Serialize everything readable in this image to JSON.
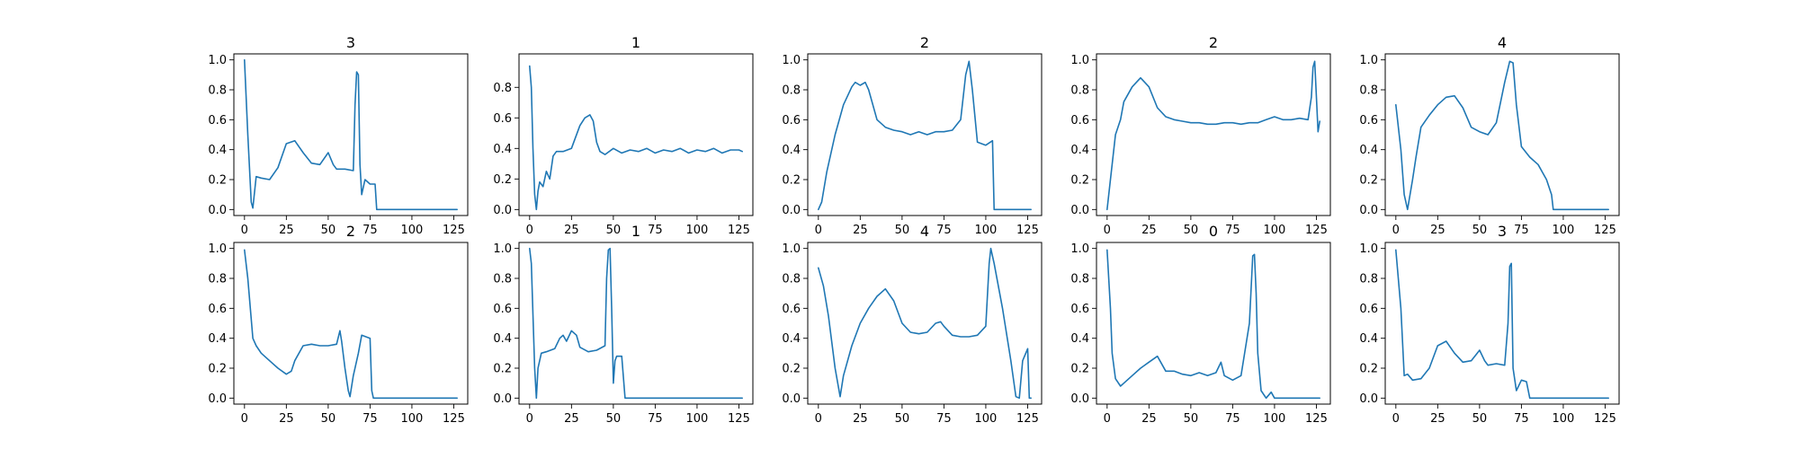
{
  "chart_data": [
    {
      "type": "line",
      "title": "3",
      "xlim": [
        0,
        127
      ],
      "ylim": [
        0,
        1
      ],
      "xticks": [
        0,
        25,
        50,
        75,
        100,
        125
      ],
      "yticks": [
        0.0,
        0.2,
        0.4,
        0.6,
        0.8,
        1.0
      ],
      "grid": false,
      "line_color": "#1f77b4",
      "x": [
        0,
        2,
        4,
        5,
        7,
        10,
        15,
        20,
        25,
        30,
        35,
        40,
        45,
        50,
        53,
        55,
        60,
        65,
        66,
        67,
        68,
        69,
        70,
        72,
        75,
        78,
        79,
        80,
        90,
        100,
        110,
        127
      ],
      "y": [
        1.0,
        0.5,
        0.05,
        0.01,
        0.22,
        0.21,
        0.2,
        0.28,
        0.44,
        0.46,
        0.38,
        0.31,
        0.3,
        0.38,
        0.3,
        0.27,
        0.27,
        0.26,
        0.7,
        0.92,
        0.9,
        0.3,
        0.1,
        0.2,
        0.17,
        0.17,
        0.0,
        0.0,
        0.0,
        0.0,
        0.0,
        0.0
      ]
    },
    {
      "type": "line",
      "title": "1",
      "xlim": [
        0,
        127
      ],
      "ylim": [
        0,
        0.98
      ],
      "xticks": [
        0,
        25,
        50,
        75,
        100,
        125
      ],
      "yticks": [
        0.0,
        0.2,
        0.4,
        0.6,
        0.8
      ],
      "grid": false,
      "line_color": "#1f77b4",
      "x": [
        0,
        1,
        2,
        3,
        4,
        5,
        6,
        8,
        10,
        12,
        14,
        16,
        20,
        25,
        30,
        33,
        36,
        38,
        40,
        42,
        45,
        50,
        55,
        60,
        65,
        70,
        75,
        80,
        85,
        90,
        95,
        100,
        105,
        110,
        115,
        120,
        125,
        127
      ],
      "y": [
        0.94,
        0.8,
        0.4,
        0.1,
        0.0,
        0.12,
        0.18,
        0.15,
        0.25,
        0.2,
        0.35,
        0.38,
        0.38,
        0.4,
        0.55,
        0.6,
        0.62,
        0.58,
        0.44,
        0.38,
        0.36,
        0.4,
        0.37,
        0.39,
        0.38,
        0.4,
        0.37,
        0.39,
        0.38,
        0.4,
        0.37,
        0.39,
        0.38,
        0.4,
        0.37,
        0.39,
        0.39,
        0.38
      ]
    },
    {
      "type": "line",
      "title": "2",
      "xlim": [
        0,
        127
      ],
      "ylim": [
        0,
        1
      ],
      "xticks": [
        0,
        25,
        50,
        75,
        100,
        125
      ],
      "yticks": [
        0.0,
        0.2,
        0.4,
        0.6,
        0.8,
        1.0
      ],
      "grid": false,
      "line_color": "#1f77b4",
      "x": [
        0,
        2,
        5,
        10,
        15,
        20,
        22,
        25,
        28,
        30,
        35,
        40,
        45,
        50,
        55,
        60,
        65,
        70,
        75,
        80,
        85,
        88,
        90,
        92,
        95,
        100,
        104,
        105,
        106,
        107,
        110,
        115,
        120,
        125,
        127
      ],
      "y": [
        0.0,
        0.05,
        0.25,
        0.5,
        0.7,
        0.82,
        0.85,
        0.83,
        0.85,
        0.8,
        0.6,
        0.55,
        0.53,
        0.52,
        0.5,
        0.52,
        0.5,
        0.52,
        0.52,
        0.53,
        0.6,
        0.9,
        0.99,
        0.8,
        0.45,
        0.43,
        0.46,
        0.0,
        0.0,
        0.0,
        0.0,
        0.0,
        0.0,
        0.0,
        0.0
      ]
    },
    {
      "type": "line",
      "title": "2",
      "xlim": [
        0,
        127
      ],
      "ylim": [
        0,
        1
      ],
      "xticks": [
        0,
        25,
        50,
        75,
        100,
        125
      ],
      "yticks": [
        0.0,
        0.2,
        0.4,
        0.6,
        0.8,
        1.0
      ],
      "grid": false,
      "line_color": "#1f77b4",
      "x": [
        0,
        2,
        5,
        8,
        10,
        15,
        20,
        25,
        30,
        35,
        40,
        45,
        50,
        55,
        60,
        65,
        70,
        75,
        80,
        85,
        90,
        95,
        100,
        105,
        110,
        115,
        120,
        122,
        123,
        124,
        125,
        126,
        127
      ],
      "y": [
        0.0,
        0.2,
        0.5,
        0.6,
        0.72,
        0.82,
        0.88,
        0.82,
        0.68,
        0.62,
        0.6,
        0.59,
        0.58,
        0.58,
        0.57,
        0.57,
        0.58,
        0.58,
        0.57,
        0.58,
        0.58,
        0.6,
        0.62,
        0.6,
        0.6,
        0.61,
        0.6,
        0.75,
        0.95,
        0.99,
        0.75,
        0.52,
        0.59
      ]
    },
    {
      "type": "line",
      "title": "4",
      "xlim": [
        0,
        127
      ],
      "ylim": [
        0,
        1
      ],
      "xticks": [
        0,
        25,
        50,
        75,
        100,
        125
      ],
      "yticks": [
        0.0,
        0.2,
        0.4,
        0.6,
        0.8,
        1.0
      ],
      "grid": false,
      "line_color": "#1f77b4",
      "x": [
        0,
        3,
        5,
        7,
        10,
        12,
        15,
        20,
        25,
        30,
        35,
        40,
        45,
        50,
        55,
        60,
        65,
        68,
        70,
        72,
        75,
        80,
        85,
        90,
        93,
        94,
        95,
        100,
        110,
        120,
        127
      ],
      "y": [
        0.7,
        0.4,
        0.1,
        0.0,
        0.2,
        0.35,
        0.55,
        0.63,
        0.7,
        0.75,
        0.76,
        0.68,
        0.55,
        0.52,
        0.5,
        0.58,
        0.85,
        0.99,
        0.98,
        0.7,
        0.42,
        0.35,
        0.3,
        0.2,
        0.1,
        0.0,
        0.0,
        0.0,
        0.0,
        0.0,
        0.0
      ]
    },
    {
      "type": "line",
      "title": "2",
      "xlim": [
        0,
        127
      ],
      "ylim": [
        0,
        1
      ],
      "xticks": [
        0,
        25,
        50,
        75,
        100,
        125
      ],
      "yticks": [
        0.0,
        0.2,
        0.4,
        0.6,
        0.8,
        1.0
      ],
      "grid": false,
      "line_color": "#1f77b4",
      "x": [
        0,
        2,
        5,
        7,
        10,
        15,
        20,
        25,
        28,
        30,
        35,
        40,
        45,
        50,
        55,
        57,
        58,
        60,
        62,
        63,
        65,
        68,
        70,
        75,
        76,
        77,
        80,
        90,
        100,
        110,
        120,
        127
      ],
      "y": [
        0.99,
        0.8,
        0.4,
        0.35,
        0.3,
        0.25,
        0.2,
        0.16,
        0.18,
        0.25,
        0.35,
        0.36,
        0.35,
        0.35,
        0.36,
        0.45,
        0.38,
        0.2,
        0.05,
        0.01,
        0.15,
        0.3,
        0.42,
        0.4,
        0.05,
        0.0,
        0.0,
        0.0,
        0.0,
        0.0,
        0.0,
        0.0
      ]
    },
    {
      "type": "line",
      "title": "1",
      "xlim": [
        0,
        127
      ],
      "ylim": [
        0,
        1
      ],
      "xticks": [
        0,
        25,
        50,
        75,
        100,
        125
      ],
      "yticks": [
        0.0,
        0.2,
        0.4,
        0.6,
        0.8,
        1.0
      ],
      "grid": false,
      "line_color": "#1f77b4",
      "x": [
        0,
        1,
        3,
        4,
        5,
        7,
        10,
        15,
        18,
        20,
        22,
        25,
        28,
        30,
        35,
        40,
        45,
        46,
        47,
        48,
        49,
        50,
        51,
        52,
        55,
        57,
        58,
        60,
        70,
        80,
        90,
        100,
        110,
        120,
        127
      ],
      "y": [
        1.0,
        0.9,
        0.2,
        0.0,
        0.2,
        0.3,
        0.31,
        0.33,
        0.4,
        0.42,
        0.38,
        0.45,
        0.42,
        0.34,
        0.31,
        0.32,
        0.35,
        0.8,
        0.99,
        1.0,
        0.6,
        0.1,
        0.25,
        0.28,
        0.28,
        0.0,
        0.0,
        0.0,
        0.0,
        0.0,
        0.0,
        0.0,
        0.0,
        0.0,
        0.0
      ]
    },
    {
      "type": "line",
      "title": "4",
      "xlim": [
        0,
        127
      ],
      "ylim": [
        0,
        1
      ],
      "xticks": [
        0,
        25,
        50,
        75,
        100,
        125
      ],
      "yticks": [
        0.0,
        0.2,
        0.4,
        0.6,
        0.8,
        1.0
      ],
      "grid": false,
      "line_color": "#1f77b4",
      "x": [
        0,
        3,
        6,
        10,
        13,
        15,
        20,
        25,
        30,
        35,
        40,
        45,
        50,
        55,
        60,
        65,
        70,
        73,
        75,
        80,
        85,
        90,
        95,
        100,
        102,
        103,
        105,
        110,
        115,
        118,
        120,
        122,
        125,
        126,
        127
      ],
      "y": [
        0.87,
        0.75,
        0.55,
        0.2,
        0.01,
        0.15,
        0.35,
        0.5,
        0.6,
        0.68,
        0.73,
        0.65,
        0.5,
        0.44,
        0.43,
        0.44,
        0.5,
        0.51,
        0.48,
        0.42,
        0.41,
        0.41,
        0.42,
        0.48,
        0.9,
        1.0,
        0.9,
        0.6,
        0.25,
        0.01,
        0.0,
        0.25,
        0.33,
        0.0,
        0.0
      ]
    },
    {
      "type": "line",
      "title": "0",
      "xlim": [
        0,
        127
      ],
      "ylim": [
        0,
        1
      ],
      "xticks": [
        0,
        25,
        50,
        75,
        100,
        125
      ],
      "yticks": [
        0.0,
        0.2,
        0.4,
        0.6,
        0.8,
        1.0
      ],
      "grid": false,
      "line_color": "#1f77b4",
      "x": [
        0,
        2,
        3,
        5,
        8,
        10,
        15,
        20,
        25,
        30,
        35,
        40,
        45,
        50,
        55,
        60,
        65,
        68,
        70,
        75,
        80,
        85,
        87,
        88,
        89,
        90,
        92,
        95,
        98,
        100,
        105,
        110,
        115,
        120,
        125,
        127
      ],
      "y": [
        0.99,
        0.6,
        0.3,
        0.13,
        0.08,
        0.1,
        0.15,
        0.2,
        0.24,
        0.28,
        0.18,
        0.18,
        0.16,
        0.15,
        0.17,
        0.15,
        0.17,
        0.24,
        0.15,
        0.12,
        0.15,
        0.5,
        0.95,
        0.96,
        0.7,
        0.3,
        0.05,
        0.0,
        0.04,
        0.0,
        0.0,
        0.0,
        0.0,
        0.0,
        0.0,
        0.0
      ]
    },
    {
      "type": "line",
      "title": "3",
      "xlim": [
        0,
        127
      ],
      "ylim": [
        0,
        1
      ],
      "xticks": [
        0,
        25,
        50,
        75,
        100,
        125
      ],
      "yticks": [
        0.0,
        0.2,
        0.4,
        0.6,
        0.8,
        1.0
      ],
      "grid": false,
      "line_color": "#1f77b4",
      "x": [
        0,
        3,
        5,
        7,
        10,
        15,
        20,
        25,
        30,
        35,
        40,
        45,
        50,
        53,
        55,
        60,
        65,
        67,
        68,
        69,
        70,
        72,
        75,
        78,
        80,
        85,
        90,
        100,
        110,
        120,
        127
      ],
      "y": [
        0.99,
        0.6,
        0.15,
        0.16,
        0.12,
        0.13,
        0.2,
        0.35,
        0.38,
        0.3,
        0.24,
        0.25,
        0.32,
        0.25,
        0.22,
        0.23,
        0.22,
        0.5,
        0.88,
        0.9,
        0.2,
        0.05,
        0.12,
        0.11,
        0.0,
        0.0,
        0.0,
        0.0,
        0.0,
        0.0,
        0.0
      ]
    }
  ]
}
